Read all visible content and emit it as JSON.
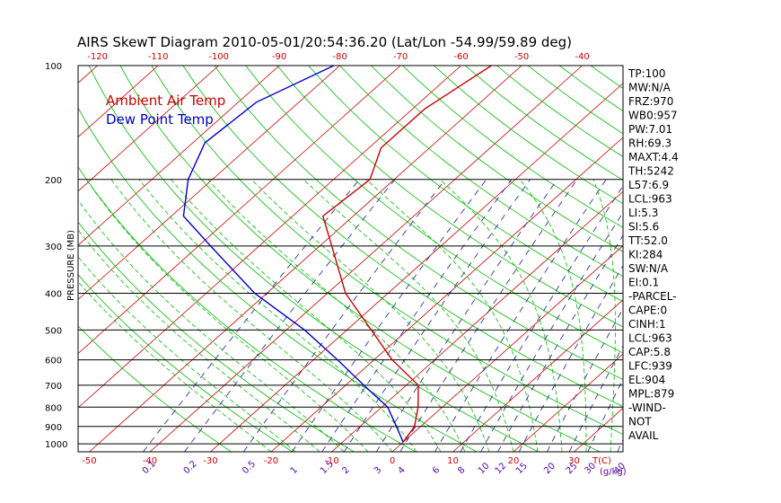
{
  "chart_data": {
    "type": "skewt",
    "title": "AIRS SkewT Diagram 2010-05-01/20:54:36.20 (Lat/Lon -54.99/59.89 deg)",
    "ylabel": "PRESSURE (MB)",
    "xlabel_temp": "T(C)",
    "xlabel_mix": "(g/kg)",
    "pressure_ticks": [
      100,
      200,
      300,
      400,
      500,
      600,
      700,
      800,
      900,
      1000
    ],
    "pressure_range": [
      100,
      1050
    ],
    "top_temp_ticks": [
      -120,
      -110,
      -100,
      -90,
      -80,
      -70,
      -60,
      -50,
      -40
    ],
    "bottom_temp_ticks": [
      -50,
      -40,
      -30,
      -20,
      -10,
      0,
      10,
      20,
      30
    ],
    "mixing_ratio_ticks": [
      "0.1",
      "0.2",
      "0.5",
      "1",
      "1.5",
      "2",
      "3",
      "4",
      "6",
      "8",
      "10",
      "12",
      "15",
      "20",
      "25",
      "30",
      "40"
    ],
    "legend": [
      {
        "name": "Ambient Air Temp",
        "color": "#cc0000"
      },
      {
        "name": "Dew Point Temp",
        "color": "#0000cc"
      }
    ],
    "series": [
      {
        "name": "Ambient Air Temp",
        "color": "#cc0000",
        "points": [
          {
            "p": 100,
            "t": -55
          },
          {
            "p": 130,
            "t": -58
          },
          {
            "p": 165,
            "t": -58
          },
          {
            "p": 200,
            "t": -54
          },
          {
            "p": 250,
            "t": -55
          },
          {
            "p": 300,
            "t": -48
          },
          {
            "p": 400,
            "t": -37
          },
          {
            "p": 500,
            "t": -26
          },
          {
            "p": 600,
            "t": -17
          },
          {
            "p": 700,
            "t": -8
          },
          {
            "p": 800,
            "t": -4
          },
          {
            "p": 900,
            "t": -1
          },
          {
            "p": 990,
            "t": 0
          }
        ]
      },
      {
        "name": "Dew Point Temp",
        "color": "#0000cc",
        "points": [
          {
            "p": 100,
            "t": -81
          },
          {
            "p": 125,
            "t": -87
          },
          {
            "p": 160,
            "t": -88
          },
          {
            "p": 200,
            "t": -84
          },
          {
            "p": 250,
            "t": -78
          },
          {
            "p": 300,
            "t": -68
          },
          {
            "p": 400,
            "t": -52
          },
          {
            "p": 500,
            "t": -37
          },
          {
            "p": 600,
            "t": -26
          },
          {
            "p": 700,
            "t": -17
          },
          {
            "p": 800,
            "t": -9
          },
          {
            "p": 900,
            "t": -4
          },
          {
            "p": 990,
            "t": 0
          }
        ]
      }
    ],
    "grid": true,
    "isotherm_color": "#cc0000",
    "dry_adiabat_color": "#00bb00",
    "moist_adiabat_color": "#00bb00",
    "mixing_ratio_color": "#333399"
  },
  "indices": [
    "TP:100",
    "MW:N/A",
    "FRZ:970",
    "WB0:957",
    "PW:7.01",
    "RH:69.3",
    "MAXT:4.4",
    "TH:5242",
    "L57:6.9",
    "LCL:963",
    "LI:5.3",
    "SI:5.6",
    "TT:52.0",
    "KI:284",
    "SW:N/A",
    "EI:0.1",
    "-PARCEL-",
    "CAPE:0",
    "CINH:1",
    "LCL:963",
    "CAP:5.8",
    "LFC:939",
    "EL:904",
    "MPL:879",
    "-WIND-",
    "NOT",
    "AVAIL"
  ]
}
